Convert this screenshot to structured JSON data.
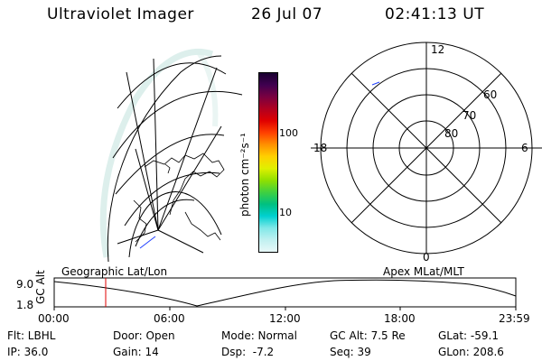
{
  "header": {
    "instrument": "Ultraviolet Imager",
    "date": "26 Jul 07",
    "time": "02:41:13 UT"
  },
  "colorbar": {
    "unit_label": "photon cm⁻²s⁻¹",
    "ticks": [
      "100",
      "10"
    ],
    "colors": [
      "#1a0030",
      "#400050",
      "#7a0040",
      "#b00020",
      "#e00000",
      "#ff4000",
      "#ff9000",
      "#ffd000",
      "#e0f000",
      "#90e000",
      "#40d040",
      "#00c080",
      "#00d0d0",
      "#80e8e8",
      "#c0f0f0",
      "#e8f8f8"
    ]
  },
  "polar_plot": {
    "mlt_labels": [
      "12",
      "18",
      "6",
      "0"
    ],
    "lat_labels": [
      "60",
      "70",
      "80"
    ]
  },
  "timeline": {
    "left_label": "Geographic Lat/Lon",
    "right_label": "Apex MLat/MLT",
    "axis_title": "GC Alt",
    "y_max": "9.0",
    "y_min": "1.8",
    "x_ticks": [
      "00:00",
      "06:00",
      "12:00",
      "18:00",
      "23:59"
    ],
    "marker_color": "#e00000"
  },
  "params": {
    "filter": "Flt: LBHL",
    "ip": "IP: 36.0",
    "door": "Door: Open",
    "gain": "Gain: 14",
    "mode": "Mode: Normal",
    "dsp": "Dsp:  -7.2",
    "gc_alt": "GC Alt: 7.5 Re",
    "seq": "Seq: 39",
    "glat": "GLat: -59.1",
    "glon": "GLon: 208.6"
  }
}
